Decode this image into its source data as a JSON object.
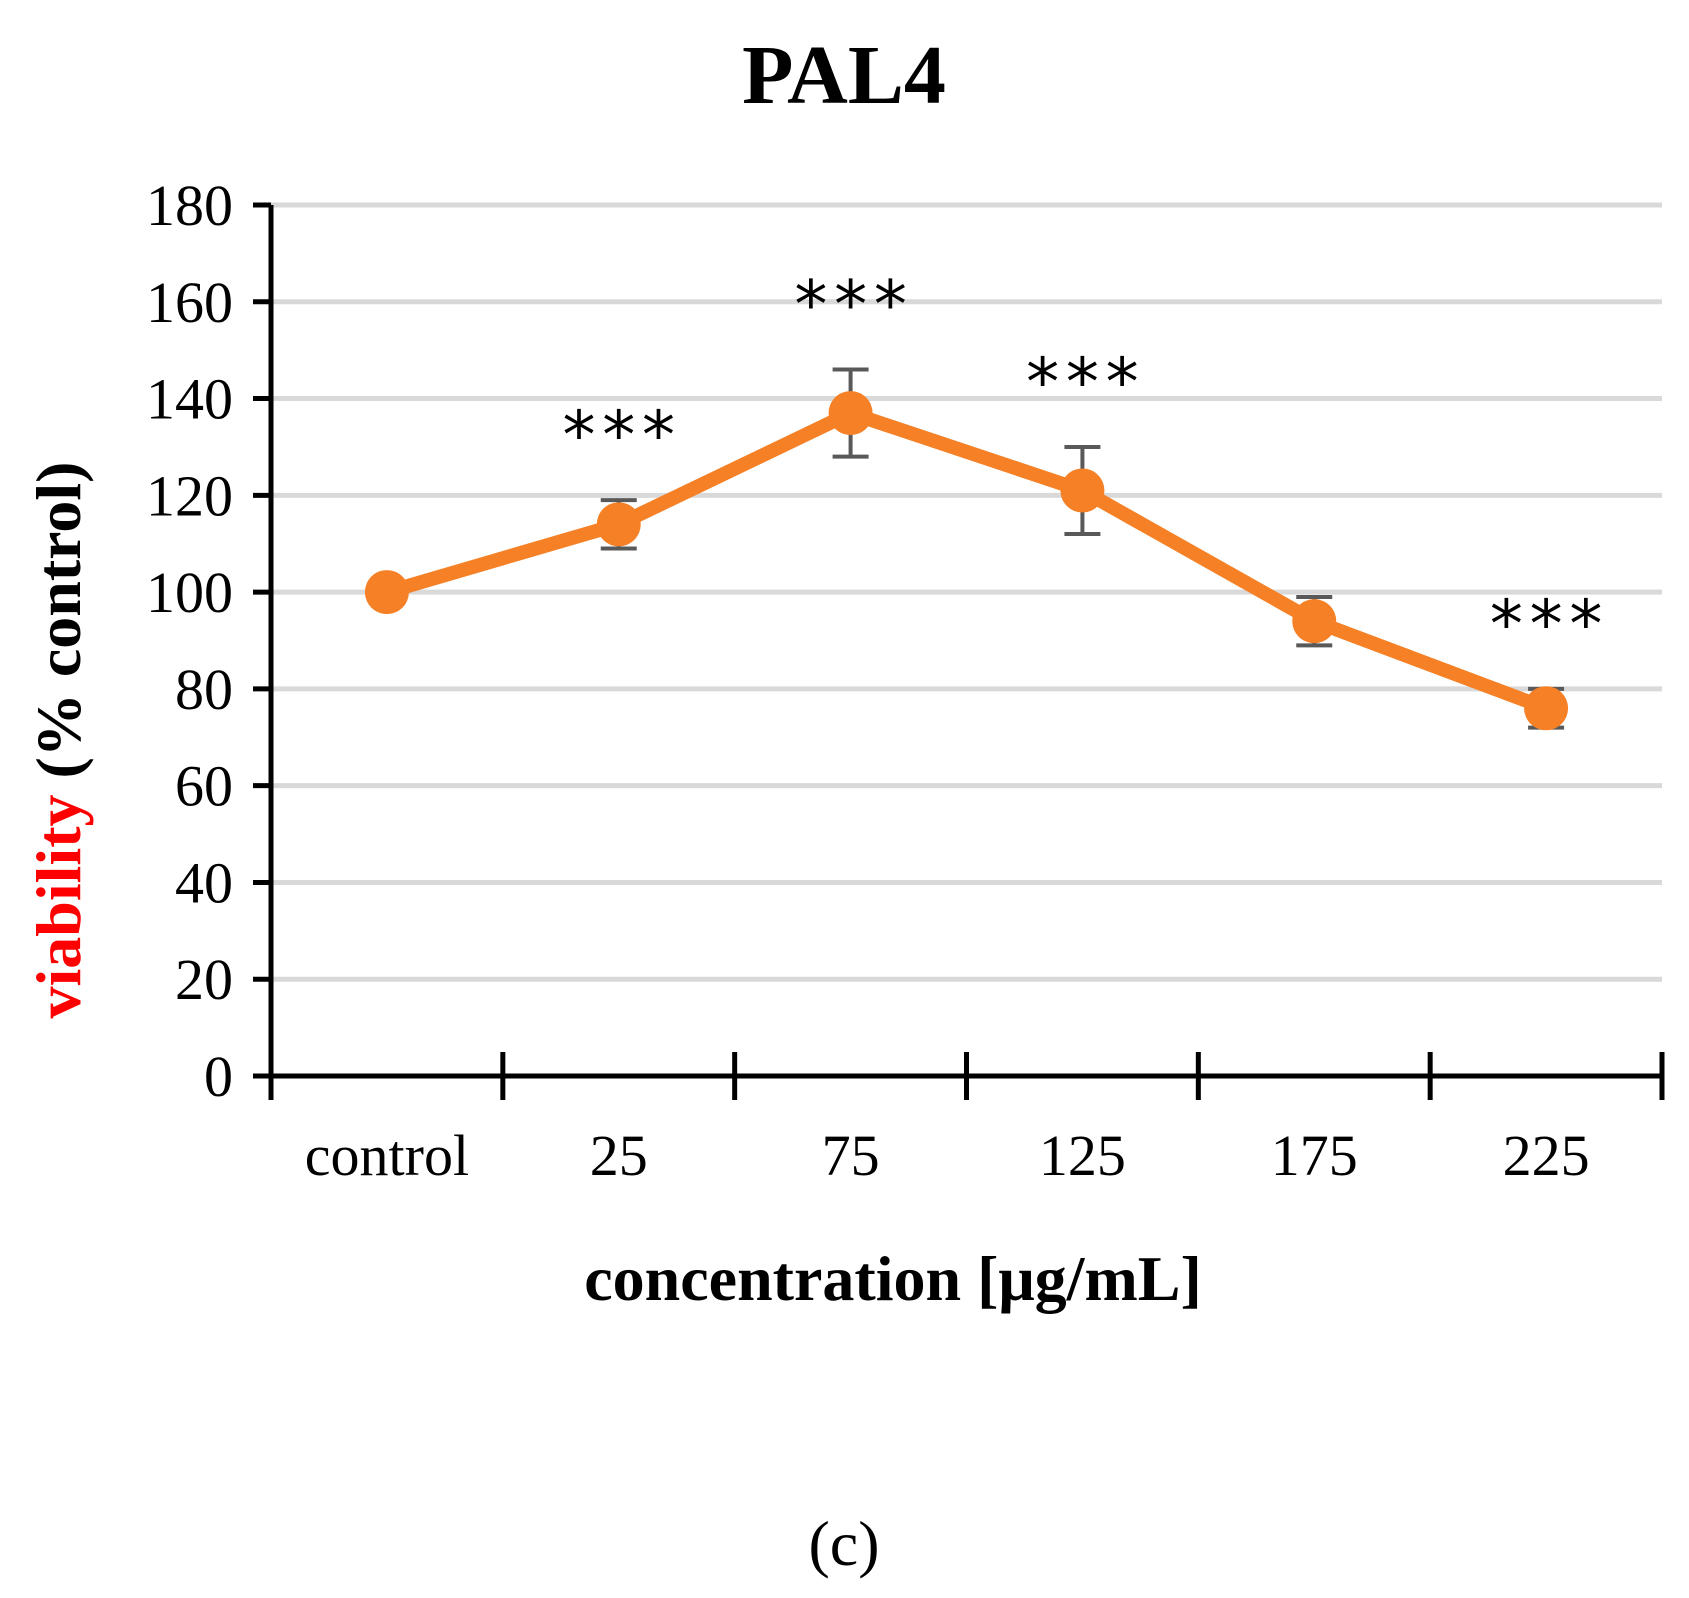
{
  "chart_data": {
    "type": "line",
    "title": "PAL4",
    "xlabel": "concentration [μg/mL]",
    "ylabel_parts": [
      "viability",
      " (% control)"
    ],
    "ylabel_colors": [
      "#ff0000",
      "#000000"
    ],
    "categories": [
      "control",
      "25",
      "75",
      "125",
      "175",
      "225"
    ],
    "series": [
      {
        "name": "PAL4",
        "color": "#f58025",
        "values": [
          100,
          114,
          137,
          121,
          94,
          76
        ],
        "errors": [
          0,
          5,
          9,
          9,
          5,
          4
        ]
      }
    ],
    "annotations": [
      "",
      "***",
      "***",
      "***",
      "",
      "***"
    ],
    "ylim": [
      0,
      180
    ],
    "yticks": [
      0,
      20,
      40,
      60,
      80,
      100,
      120,
      140,
      160,
      180
    ],
    "grid": true,
    "grid_color": "#d9d9d9",
    "error_color": "#595959"
  },
  "panel_label": "(c)"
}
